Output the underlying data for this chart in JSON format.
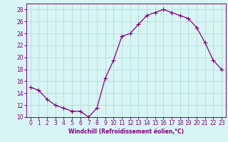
{
  "x": [
    0,
    1,
    2,
    3,
    4,
    5,
    6,
    7,
    8,
    9,
    10,
    11,
    12,
    13,
    14,
    15,
    16,
    17,
    18,
    19,
    20,
    21,
    22,
    23
  ],
  "y": [
    15,
    14.5,
    13,
    12,
    11.5,
    11,
    11,
    10,
    11.5,
    16.5,
    19.5,
    23.5,
    24,
    25.5,
    27,
    27.5,
    28,
    27.5,
    27,
    26.5,
    25,
    22.5,
    19.5,
    18
  ],
  "line_color": "#800080",
  "marker": "+",
  "marker_size": 4,
  "linewidth": 0.9,
  "background_color": "#d8f5f5",
  "grid_color": "#a8d8d8",
  "xlabel": "Windchill (Refroidissement éolien,°C)",
  "xlabel_fontsize": 5.5,
  "tick_fontsize": 5.5,
  "ylim": [
    10,
    29
  ],
  "xlim": [
    -0.5,
    23.5
  ],
  "yticks": [
    10,
    12,
    14,
    16,
    18,
    20,
    22,
    24,
    26,
    28
  ],
  "xticks": [
    0,
    1,
    2,
    3,
    4,
    5,
    6,
    7,
    8,
    9,
    10,
    11,
    12,
    13,
    14,
    15,
    16,
    17,
    18,
    19,
    20,
    21,
    22,
    23
  ]
}
